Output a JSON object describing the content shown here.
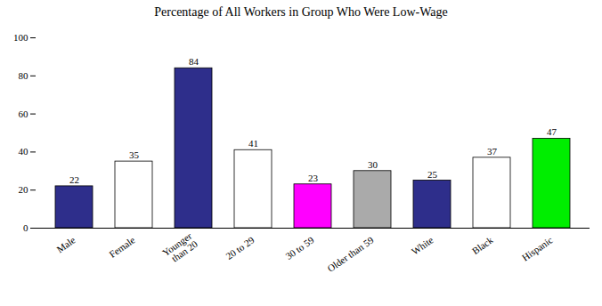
{
  "chart_data": {
    "type": "bar",
    "title": "Percentage of All Workers in Group Who Were Low-Wage",
    "categories": [
      "Male",
      "Female",
      "Younger\nthan 20",
      "20 to 29",
      "30 to 59",
      "Older than 59",
      "White",
      "Black",
      "Hispanic"
    ],
    "values": [
      22,
      35,
      84,
      41,
      23,
      30,
      25,
      37,
      47
    ],
    "colors": [
      "#2e2e8b",
      "#ffffff",
      "#2e2e8b",
      "#ffffff",
      "#ff00ff",
      "#aaaaaa",
      "#2e2e8b",
      "#ffffff",
      "#00ee00"
    ],
    "ylim": [
      0,
      100
    ],
    "yticks": [
      0,
      20,
      40,
      60,
      80,
      100
    ],
    "grid": false,
    "data_labels": true
  }
}
